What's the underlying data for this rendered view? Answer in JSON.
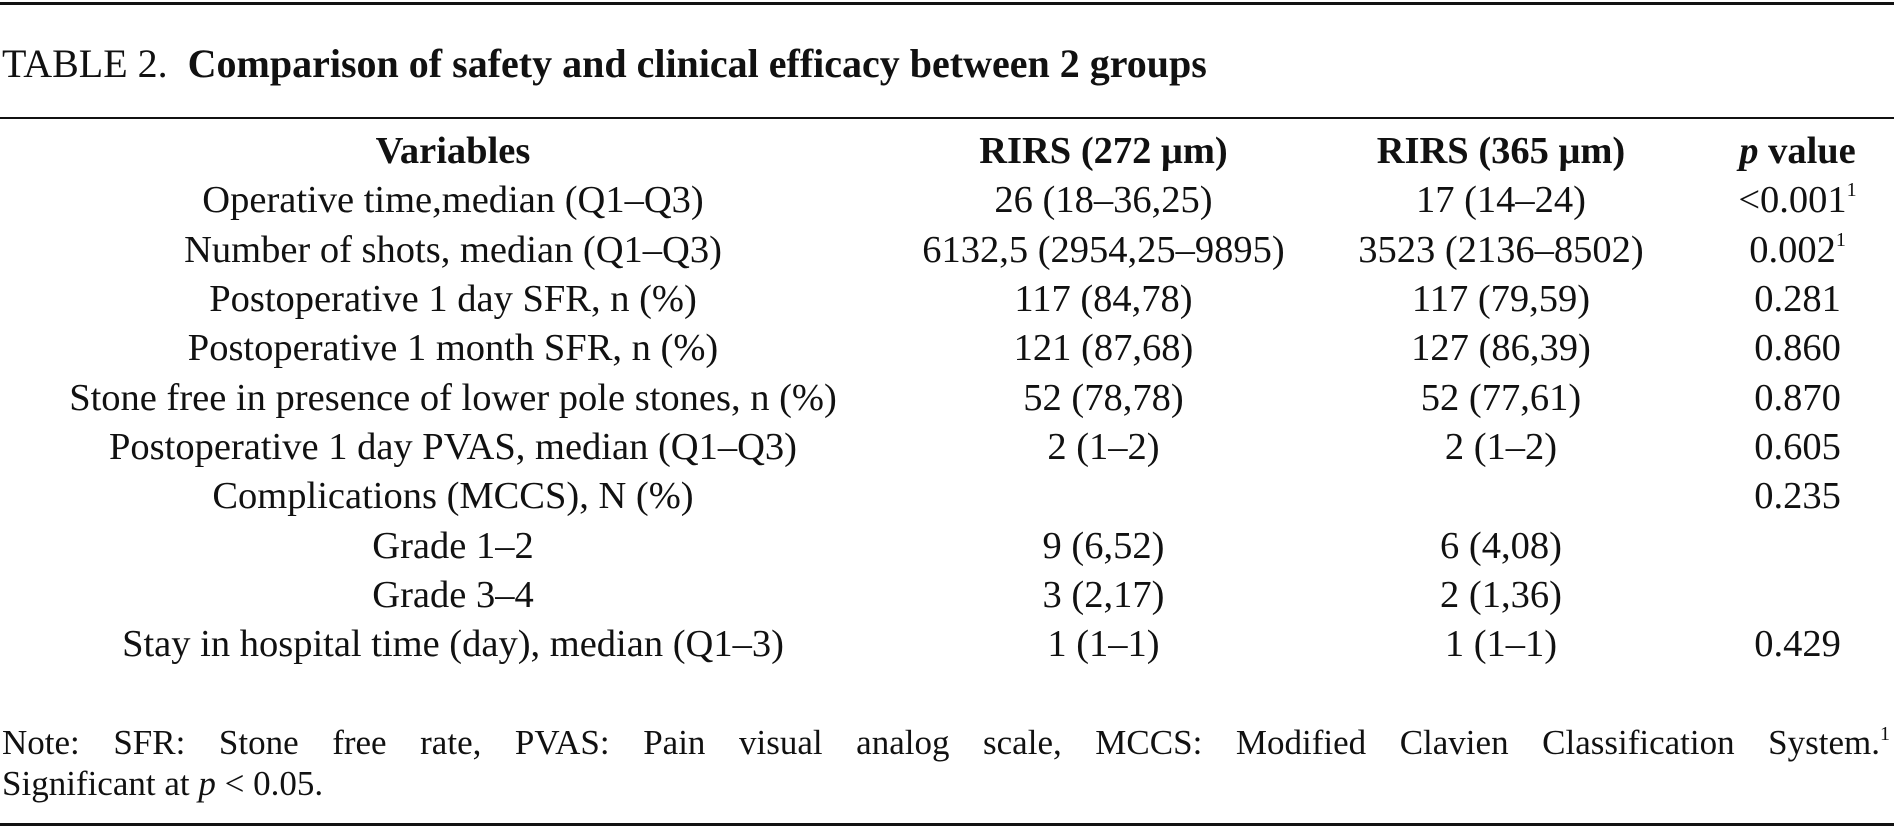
{
  "caption": {
    "label": "TABLE 2.",
    "title": "Comparison of safety and clinical efficacy between 2 groups"
  },
  "table": {
    "headers": {
      "variables": "Variables",
      "group1": "RIRS (272 μm)",
      "group2": "RIRS (365 μm)",
      "pvalue_italic": "p",
      "pvalue_rest": " value"
    },
    "rows": [
      {
        "variable": "Operative time,median (Q1–Q3)",
        "g1": "26 (18–36,25)",
        "g2": "17 (14–24)",
        "p": "<0.001",
        "sup": "1"
      },
      {
        "variable": "Number of shots, median (Q1–Q3)",
        "g1": "6132,5 (2954,25–9895)",
        "g2": "3523 (2136–8502)",
        "p": "0.002",
        "sup": "1"
      },
      {
        "variable": "Postoperative 1 day SFR, n (%)",
        "g1": "117 (84,78)",
        "g2": "117 (79,59)",
        "p": "0.281",
        "sup": ""
      },
      {
        "variable": "Postoperative 1 month SFR, n (%)",
        "g1": "121 (87,68)",
        "g2": "127 (86,39)",
        "p": "0.860",
        "sup": ""
      },
      {
        "variable": "Stone free in presence of lower pole stones, n (%)",
        "g1": "52 (78,78)",
        "g2": "52 (77,61)",
        "p": "0.870",
        "sup": ""
      },
      {
        "variable": "Postoperative 1 day PVAS, median (Q1–Q3)",
        "g1": "2 (1–2)",
        "g2": "2 (1–2)",
        "p": "0.605",
        "sup": ""
      },
      {
        "variable": "Complications (MCCS), N (%)",
        "g1": "",
        "g2": "",
        "p": "0.235",
        "sup": ""
      },
      {
        "variable": "Grade 1–2",
        "g1": "9 (6,52)",
        "g2": "6 (4,08)",
        "p": "",
        "sup": ""
      },
      {
        "variable": "Grade 3–4",
        "g1": "3 (2,17)",
        "g2": "2 (1,36)",
        "p": "",
        "sup": ""
      },
      {
        "variable": "Stay in hospital time (day), median (Q1–3)",
        "g1": "1 (1–1)",
        "g2": "1 (1–1)",
        "p": "0.429",
        "sup": ""
      }
    ]
  },
  "note": {
    "line1": "Note: SFR: Stone free rate, PVAS: Pain visual analog scale, MCCS: Modified Clavien Classification System.",
    "line1_sup": "1",
    "line2_prefix": "Significant at ",
    "line2_italic": "p",
    "line2_suffix": " < 0.05."
  }
}
